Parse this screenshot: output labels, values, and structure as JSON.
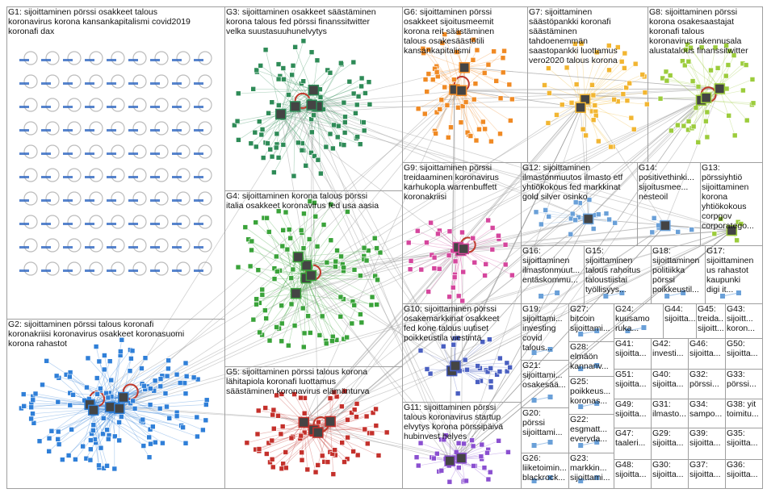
{
  "colors": {
    "edge": "#9a9a9a",
    "box": "#9f9f9f",
    "g1": "#3a6fc4",
    "g2": "#2f7fd8",
    "g3": "#2e8b57",
    "g4": "#3aa33a",
    "g5": "#c4302b",
    "g6": "#f08a24",
    "g7": "#f2b632",
    "g8": "#9ccc3c",
    "g9": "#d5469d",
    "g10": "#4a5fc1",
    "g11": "#8a4fd0",
    "g12": "#6aa0d8",
    "self_loop": "#c0392b"
  },
  "groups": [
    {
      "id": "g1",
      "label": "G1: sijoittaminen pörssi osakkeet talous\nkoronavirus korona kansankapitalismi covid2019\nkoronafi dax"
    },
    {
      "id": "g2",
      "label": "G2: sijoittaminen pörssi talous koronafi\nkoronakriisi koronavirus osakkeet koronasuomi\nkorona rahastot"
    },
    {
      "id": "g3",
      "label": "G3: sijoittaminen osakkeet säästäminen\nkorona talous fed pörssi finanssitwitter\nvelka suustasuuhunelvytys"
    },
    {
      "id": "g4",
      "label": "G4: sijoittaminen korona talous pörssi\nitalia osakkeet koronavirus fed usa aasia"
    },
    {
      "id": "g5",
      "label": "G5: sijoittaminen pörssi talous korona\nlähitapiola koronafi luottamus\nsäästäminen koronavirus elämänturva"
    },
    {
      "id": "g6",
      "label": "G6: sijoittaminen pörssi\nosakkeet sijoitusmeemit\nkorona reit säästäminen\ntalous osakesäästötili\nkansankapitalismi"
    },
    {
      "id": "g7",
      "label": "G7: sijoittaminen\nsäästöpankki koronafi\nsäästäminen\ntahdoenemmän\nsaastopankki luottamus\nvero2020 talous korona"
    },
    {
      "id": "g8",
      "label": "G8: sijoittaminen pörssi\nkorona osakesaastajat\nkoronafi talous\nkoronavirus rakennusala\nalustatalous finanssitwitter"
    },
    {
      "id": "g9",
      "label": "G9: sijoittaminen pörssi\ntreidaaminen koronavirus\nkarhukopla warrenbuffett\nkoronakriisi"
    },
    {
      "id": "g10",
      "label": "G10: sijoittaminen pörssi\nosakemarkkinat osakkeet\nfed kone talous uutiset\npoikkeustila viestintä"
    },
    {
      "id": "g11",
      "label": "G11: sijoittaminen pörssi\ntalous koronavirus startup\nelvytys korona pörssipäivä\nhubinvest helyes"
    },
    {
      "id": "g12",
      "label": "G12: sijoittaminen\nilmastonmuutos ilmasto etf\nyhtiökokous fed markkinat\ngold silver osinko"
    },
    {
      "id": "g13",
      "label": "G13:\npörssiyhtiö\nsijoittaminen\nkorona\nyhtiökokous\ncorpgov\ncorporatego..."
    },
    {
      "id": "g14",
      "label": "G14:\npositivethinki...\nsijoitusmee...\nnesteoil"
    },
    {
      "id": "g15",
      "label": "G15:\nsijoittaminen\ntalous rahoitus\ntaloustiistai\ntyöllisyys..."
    },
    {
      "id": "g16",
      "label": "G16:\nsijoittaminen\nilmastonmuut...\nentäskommu..."
    },
    {
      "id": "g17",
      "label": "G17:\nsijoittaminen\nus rahastot\nkaupunki\ndigi it..."
    },
    {
      "id": "g18",
      "label": "G18:\nsijoittaminen\npolitiikka\npörssi\npoikkeustil..."
    },
    {
      "id": "g19",
      "label": "G19:\nsijoittami...\ninvesting\ncovid\ntalous..."
    },
    {
      "id": "g20",
      "label": "G20:\npörssi\nsijoittami..."
    },
    {
      "id": "g21",
      "label": "G21:\nsijoittami...\nosakesää..."
    },
    {
      "id": "g22",
      "label": "G22:\nesgmatt...\neveryda..."
    },
    {
      "id": "g23",
      "label": "G23:\nmarkkin...\nsijoittami..."
    },
    {
      "id": "g24",
      "label": "G24:\nkuusamo\nruka..."
    },
    {
      "id": "g25",
      "label": "G25:\npoikkeus...\nkoronas..."
    },
    {
      "id": "g26",
      "label": "G26:\nliiketoimin...\nblackrock..."
    },
    {
      "id": "g27",
      "label": "G27:\nbitcoin\nsijoittami..."
    },
    {
      "id": "g28",
      "label": "G28:\nelmäön\nkannanv..."
    },
    {
      "id": "g29",
      "label": "G29:\nsijoitta..."
    },
    {
      "id": "g30",
      "label": "G30:\nsijoitta..."
    },
    {
      "id": "g31",
      "label": "G31:\nilmasto..."
    },
    {
      "id": "g32",
      "label": "G32:\npörssi..."
    },
    {
      "id": "g33",
      "label": "G33:\npörssi..."
    },
    {
      "id": "g34",
      "label": "G34:\nsampo..."
    },
    {
      "id": "g35",
      "label": "G35:\nsijoitta..."
    },
    {
      "id": "g36",
      "label": "G36:\nsijoitta..."
    },
    {
      "id": "g37",
      "label": "G37:\nsijoitta..."
    },
    {
      "id": "g38",
      "label": "G38: yit\ntoimitu..."
    },
    {
      "id": "g39",
      "label": "G39:\nsijoitta..."
    },
    {
      "id": "g40",
      "label": "G40:\nsijoitta..."
    },
    {
      "id": "g41",
      "label": "G41:\nsijoitta..."
    },
    {
      "id": "g42",
      "label": "G42:\ninvesti..."
    },
    {
      "id": "g43",
      "label": "G43:\nsijoitt...\nkoron..."
    },
    {
      "id": "g44",
      "label": "G44:\nsijoitta..."
    },
    {
      "id": "g45",
      "label": "G45:\ntreida...\nsijoitt..."
    },
    {
      "id": "g46",
      "label": "G46:\nsijoitta..."
    },
    {
      "id": "g47",
      "label": "G47:\ntaaleri..."
    },
    {
      "id": "g48",
      "label": "G48:\nsijoitta..."
    },
    {
      "id": "g49",
      "label": "G49:\nsijoitta..."
    },
    {
      "id": "g50",
      "label": "G50:\nsijoitta..."
    },
    {
      "id": "g51",
      "label": "G51:\nsijoitta..."
    }
  ]
}
